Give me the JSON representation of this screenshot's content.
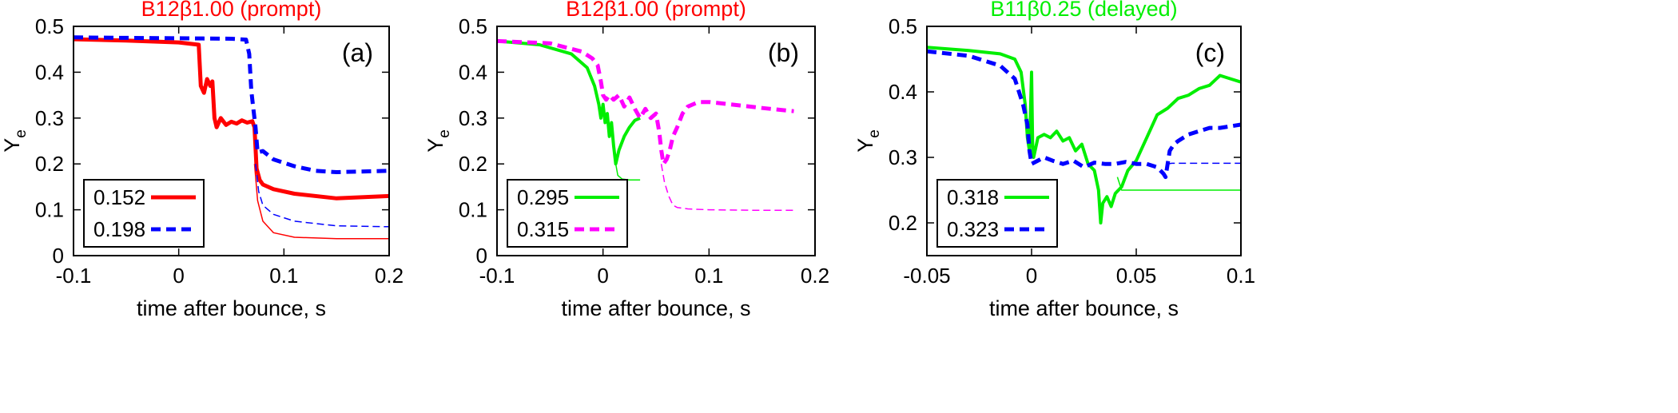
{
  "chart_data": [
    {
      "type": "line",
      "panel": "(a)",
      "title": "B12β1.00 (prompt)",
      "title_color": "#ff0000",
      "xlabel": "time after bounce, s",
      "ylabel": "Y",
      "ylabel_sub": "e",
      "xlim": [
        -0.1,
        0.2
      ],
      "ylim": [
        0,
        0.5
      ],
      "xticks": [
        -0.1,
        0,
        0.1,
        0.2
      ],
      "xtick_labels": [
        "-0.1",
        "0",
        "0.1",
        "0.2"
      ],
      "yticks": [
        0,
        0.1,
        0.2,
        0.3,
        0.4,
        0.5
      ],
      "ytick_labels": [
        "0",
        "0.1",
        "0.2",
        "0.3",
        "0.4",
        "0.5"
      ],
      "legend_location": "bottom-left",
      "series": [
        {
          "name": "0.152",
          "color": "#ff0000",
          "dash": "solid",
          "width": 5,
          "x": [
            -0.1,
            -0.05,
            0.0,
            0.019,
            0.021,
            0.024,
            0.027,
            0.03,
            0.032,
            0.034,
            0.036,
            0.04,
            0.045,
            0.05,
            0.055,
            0.06,
            0.065,
            0.07,
            0.072,
            0.074,
            0.077,
            0.08,
            0.09,
            0.11,
            0.15,
            0.2
          ],
          "y": [
            0.472,
            0.469,
            0.465,
            0.46,
            0.37,
            0.355,
            0.385,
            0.37,
            0.38,
            0.3,
            0.28,
            0.3,
            0.285,
            0.292,
            0.288,
            0.295,
            0.29,
            0.293,
            0.28,
            0.19,
            0.165,
            0.155,
            0.145,
            0.135,
            0.125,
            0.13
          ]
        },
        {
          "name": "",
          "color": "#ff0000",
          "dash": "solid",
          "width": 1.5,
          "x": [
            0.072,
            0.075,
            0.08,
            0.09,
            0.11,
            0.15,
            0.2
          ],
          "y": [
            0.2,
            0.12,
            0.075,
            0.05,
            0.04,
            0.037,
            0.037
          ]
        },
        {
          "name": "0.198",
          "color": "#0000ff",
          "dash": "12,7",
          "width": 5,
          "x": [
            -0.1,
            -0.05,
            0.0,
            0.05,
            0.064,
            0.067,
            0.069,
            0.071,
            0.073,
            0.075,
            0.08,
            0.09,
            0.11,
            0.13,
            0.15,
            0.2
          ],
          "y": [
            0.476,
            0.475,
            0.474,
            0.473,
            0.471,
            0.44,
            0.36,
            0.32,
            0.28,
            0.225,
            0.228,
            0.21,
            0.195,
            0.185,
            0.182,
            0.185
          ]
        },
        {
          "name": "",
          "color": "#0000ff",
          "dash": "9,5",
          "width": 1.5,
          "x": [
            0.073,
            0.076,
            0.08,
            0.09,
            0.11,
            0.15,
            0.2
          ],
          "y": [
            0.2,
            0.14,
            0.11,
            0.09,
            0.075,
            0.065,
            0.063
          ]
        }
      ]
    },
    {
      "type": "line",
      "panel": "(b)",
      "title": "B12β1.00 (prompt)",
      "title_color": "#ff0000",
      "xlabel": "time after bounce, s",
      "ylabel": "Y",
      "ylabel_sub": "e",
      "xlim": [
        -0.1,
        0.2
      ],
      "ylim": [
        0,
        0.5
      ],
      "xticks": [
        -0.1,
        0,
        0.1,
        0.2
      ],
      "xtick_labels": [
        "-0.1",
        "0",
        "0.1",
        "0.2"
      ],
      "yticks": [
        0,
        0.1,
        0.2,
        0.3,
        0.4,
        0.5
      ],
      "ytick_labels": [
        "0",
        "0.1",
        "0.2",
        "0.3",
        "0.4",
        "0.5"
      ],
      "legend_location": "bottom-left",
      "series": [
        {
          "name": "0.295",
          "color": "#00ee00",
          "dash": "solid",
          "width": 4,
          "x": [
            -0.1,
            -0.06,
            -0.03,
            -0.015,
            -0.008,
            -0.004,
            -0.002,
            0.0,
            0.002,
            0.004,
            0.006,
            0.008,
            0.01,
            0.012,
            0.015,
            0.02,
            0.025,
            0.03,
            0.035
          ],
          "y": [
            0.468,
            0.46,
            0.44,
            0.41,
            0.37,
            0.33,
            0.3,
            0.33,
            0.29,
            0.31,
            0.26,
            0.29,
            0.24,
            0.2,
            0.23,
            0.26,
            0.28,
            0.295,
            0.3
          ]
        },
        {
          "name": "",
          "color": "#00ee00",
          "dash": "solid",
          "width": 1.5,
          "x": [
            0.012,
            0.014,
            0.018,
            0.025,
            0.035
          ],
          "y": [
            0.2,
            0.175,
            0.167,
            0.165,
            0.165
          ]
        },
        {
          "name": "0.315",
          "color": "#ff00ff",
          "dash": "12,7",
          "width": 5,
          "x": [
            -0.1,
            -0.05,
            -0.02,
            -0.01,
            -0.005,
            -0.002,
            0.0,
            0.003,
            0.006,
            0.01,
            0.015,
            0.02,
            0.025,
            0.03,
            0.035,
            0.04,
            0.045,
            0.05,
            0.053,
            0.055,
            0.057,
            0.06,
            0.063,
            0.066,
            0.07,
            0.075,
            0.08,
            0.09,
            0.1,
            0.12,
            0.15,
            0.18
          ],
          "y": [
            0.468,
            0.463,
            0.445,
            0.43,
            0.415,
            0.38,
            0.35,
            0.34,
            0.35,
            0.34,
            0.35,
            0.325,
            0.345,
            0.32,
            0.3,
            0.32,
            0.3,
            0.31,
            0.27,
            0.23,
            0.2,
            0.21,
            0.23,
            0.26,
            0.28,
            0.31,
            0.325,
            0.335,
            0.335,
            0.33,
            0.322,
            0.315
          ]
        },
        {
          "name": "",
          "color": "#ff00ff",
          "dash": "9,5",
          "width": 1.5,
          "x": [
            0.055,
            0.058,
            0.062,
            0.066,
            0.07,
            0.08,
            0.1,
            0.14,
            0.18
          ],
          "y": [
            0.2,
            0.16,
            0.13,
            0.11,
            0.105,
            0.102,
            0.1,
            0.099,
            0.099
          ]
        }
      ]
    },
    {
      "type": "line",
      "panel": "(c)",
      "title": "B11β0.25 (delayed)",
      "title_color": "#00ee00",
      "xlabel": "time after bounce, s",
      "ylabel": "Y",
      "ylabel_sub": "e",
      "xlim": [
        -0.05,
        0.1
      ],
      "ylim": [
        0.15,
        0.5
      ],
      "xticks": [
        -0.05,
        0,
        0.05,
        0.1
      ],
      "xtick_labels": [
        "-0.05",
        "0",
        "0.05",
        "0.1"
      ],
      "yticks": [
        0.2,
        0.3,
        0.4,
        0.5
      ],
      "ytick_labels": [
        "0.2",
        "0.3",
        "0.4",
        "0.5"
      ],
      "legend_location": "bottom-left",
      "series": [
        {
          "name": "0.318",
          "color": "#00ee00",
          "dash": "solid",
          "width": 4,
          "x": [
            -0.05,
            -0.03,
            -0.015,
            -0.008,
            -0.005,
            -0.003,
            -0.002,
            -0.001,
            0.0,
            0.0005,
            0.001,
            0.003,
            0.006,
            0.009,
            0.012,
            0.015,
            0.018,
            0.021,
            0.024,
            0.027,
            0.03,
            0.032,
            0.033,
            0.034,
            0.036,
            0.038,
            0.04,
            0.043,
            0.046,
            0.05,
            0.055,
            0.06,
            0.065,
            0.07,
            0.075,
            0.08,
            0.085,
            0.09,
            0.095,
            0.1
          ],
          "y": [
            0.468,
            0.463,
            0.458,
            0.45,
            0.43,
            0.38,
            0.33,
            0.31,
            0.43,
            0.32,
            0.3,
            0.33,
            0.335,
            0.33,
            0.34,
            0.325,
            0.33,
            0.31,
            0.32,
            0.29,
            0.28,
            0.25,
            0.2,
            0.23,
            0.24,
            0.225,
            0.245,
            0.255,
            0.28,
            0.295,
            0.33,
            0.365,
            0.375,
            0.39,
            0.395,
            0.405,
            0.41,
            0.425,
            0.42,
            0.415
          ]
        },
        {
          "name": "",
          "color": "#00ee00",
          "dash": "solid",
          "width": 1.5,
          "x": [
            0.041,
            0.043,
            0.06,
            0.08,
            0.1
          ],
          "y": [
            0.27,
            0.25,
            0.25,
            0.25,
            0.25
          ]
        },
        {
          "name": "0.323",
          "color": "#0000ff",
          "dash": "12,7",
          "width": 5,
          "x": [
            -0.05,
            -0.03,
            -0.015,
            -0.008,
            -0.004,
            -0.002,
            -0.001,
            0.0,
            0.003,
            0.006,
            0.01,
            0.015,
            0.02,
            0.025,
            0.03,
            0.035,
            0.04,
            0.045,
            0.05,
            0.055,
            0.06,
            0.063,
            0.064,
            0.065,
            0.066,
            0.068,
            0.07,
            0.075,
            0.08,
            0.085,
            0.09,
            0.1
          ],
          "y": [
            0.462,
            0.455,
            0.44,
            0.42,
            0.38,
            0.35,
            0.31,
            0.29,
            0.295,
            0.3,
            0.295,
            0.29,
            0.295,
            0.285,
            0.292,
            0.29,
            0.29,
            0.293,
            0.29,
            0.29,
            0.285,
            0.275,
            0.27,
            0.29,
            0.31,
            0.32,
            0.325,
            0.335,
            0.34,
            0.345,
            0.345,
            0.35
          ]
        },
        {
          "name": "",
          "color": "#0000ff",
          "dash": "9,5",
          "width": 1.5,
          "x": [
            0.065,
            0.067,
            0.08,
            0.1
          ],
          "y": [
            0.29,
            0.291,
            0.291,
            0.291
          ]
        }
      ]
    }
  ]
}
